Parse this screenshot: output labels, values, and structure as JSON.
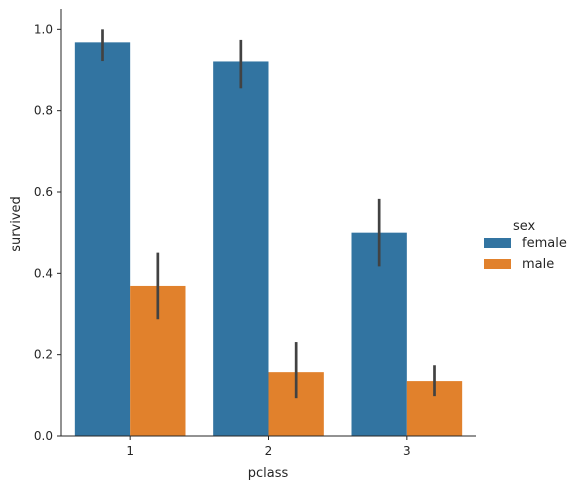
{
  "chart_data": {
    "type": "bar",
    "categories": [
      "1",
      "2",
      "3"
    ],
    "xlabel": "pclass",
    "ylabel": "survived",
    "ylim": [
      0,
      1.05
    ],
    "yticks": [
      0.0,
      0.2,
      0.4,
      0.6,
      0.8,
      1.0
    ],
    "ytick_labels": [
      "0.0",
      "0.2",
      "0.4",
      "0.6",
      "0.8",
      "1.0"
    ],
    "legend": {
      "title": "sex",
      "placement": "right"
    },
    "series": [
      {
        "name": "female",
        "color": "#3274a1",
        "values": [
          0.968,
          0.921,
          0.5
        ],
        "ci_low": [
          0.922,
          0.855,
          0.417
        ],
        "ci_high": [
          1.0,
          0.974,
          0.583
        ]
      },
      {
        "name": "male",
        "color": "#e1812c",
        "values": [
          0.369,
          0.157,
          0.135
        ],
        "ci_low": [
          0.287,
          0.093,
          0.098
        ],
        "ci_high": [
          0.451,
          0.231,
          0.174
        ]
      }
    ],
    "errorbar_color": "#424242",
    "grid": false
  }
}
